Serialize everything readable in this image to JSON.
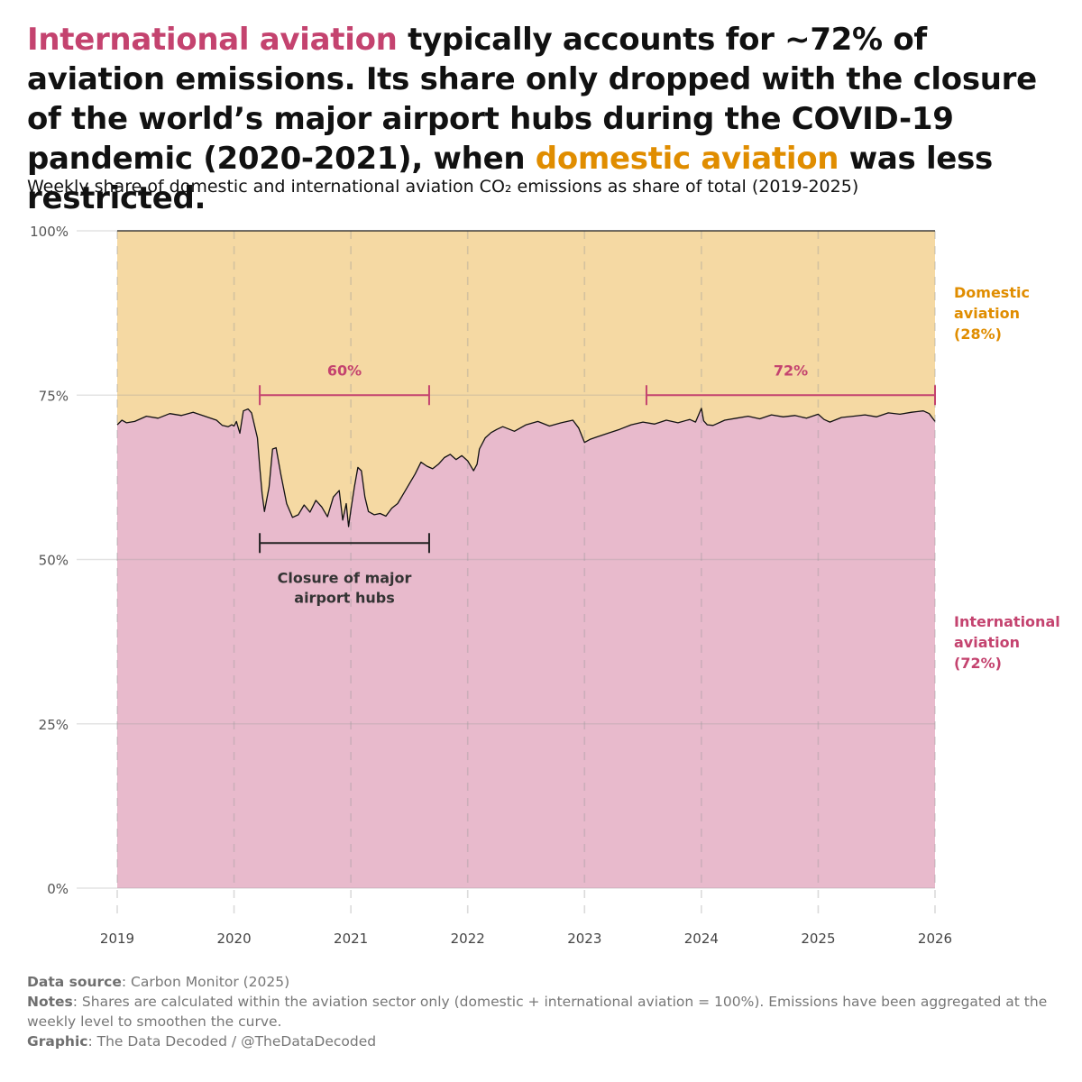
{
  "headline": {
    "part1": "International aviation",
    "part2": " typically accounts for ~72% of aviation emissions. Its share only dropped with the closure of the world’s major airport hubs during the COVID-19 pandemic (2020-2021), when ",
    "part3": "domestic aviation",
    "part4": " was less restricted."
  },
  "subtitle": "Weekly share of domestic and international aviation CO₂ emissions as share of total (2019-2025)",
  "colors": {
    "international": "#c4436f",
    "international_fill": "#e8bacc",
    "domestic": "#e08d00",
    "domestic_fill": "#f5d9a3",
    "closure_bracket": "#222222"
  },
  "chart_data": {
    "type": "area",
    "x_ticks": [
      "2019",
      "2020",
      "2021",
      "2022",
      "2023",
      "2024",
      "2025",
      "2026"
    ],
    "y_ticks": [
      "0%",
      "25%",
      "50%",
      "75%",
      "100%"
    ],
    "xlim": [
      2019,
      2026
    ],
    "ylim": [
      0,
      100
    ],
    "grid": true,
    "series": [
      {
        "name": "International aviation (72%)",
        "label_lines": [
          "International",
          "aviation",
          "(72%)"
        ]
      },
      {
        "name": "Domestic aviation (28%)",
        "label_lines": [
          "Domestic",
          "aviation",
          "(28%)"
        ]
      }
    ],
    "international_share": {
      "x": [
        2019.0,
        2019.04,
        2019.08,
        2019.15,
        2019.25,
        2019.35,
        2019.45,
        2019.55,
        2019.65,
        2019.75,
        2019.85,
        2019.9,
        2019.95,
        2019.98,
        2020.0,
        2020.02,
        2020.05,
        2020.08,
        2020.12,
        2020.15,
        2020.18,
        2020.2,
        2020.22,
        2020.24,
        2020.26,
        2020.3,
        2020.33,
        2020.36,
        2020.4,
        2020.45,
        2020.5,
        2020.55,
        2020.6,
        2020.65,
        2020.7,
        2020.75,
        2020.8,
        2020.85,
        2020.9,
        2020.93,
        2020.96,
        2020.98,
        2021.0,
        2021.03,
        2021.06,
        2021.09,
        2021.12,
        2021.15,
        2021.2,
        2021.25,
        2021.3,
        2021.35,
        2021.4,
        2021.45,
        2021.5,
        2021.55,
        2021.6,
        2021.65,
        2021.7,
        2021.75,
        2021.8,
        2021.85,
        2021.9,
        2021.95,
        2022.0,
        2022.05,
        2022.08,
        2022.1,
        2022.15,
        2022.2,
        2022.25,
        2022.3,
        2022.4,
        2022.5,
        2022.6,
        2022.7,
        2022.8,
        2022.9,
        2022.95,
        2023.0,
        2023.05,
        2023.1,
        2023.2,
        2023.3,
        2023.4,
        2023.5,
        2023.6,
        2023.7,
        2023.8,
        2023.9,
        2023.95,
        2024.0,
        2024.02,
        2024.05,
        2024.1,
        2024.2,
        2024.3,
        2024.4,
        2024.5,
        2024.6,
        2024.7,
        2024.8,
        2024.9,
        2025.0,
        2025.05,
        2025.1,
        2025.2,
        2025.3,
        2025.4,
        2025.5,
        2025.6,
        2025.7,
        2025.8,
        2025.9,
        2025.95,
        2026.0
      ],
      "y": [
        70.5,
        71.2,
        70.8,
        71.0,
        71.8,
        71.5,
        72.2,
        71.9,
        72.4,
        71.8,
        71.2,
        70.4,
        70.2,
        70.5,
        70.3,
        71.0,
        69.2,
        72.6,
        72.9,
        72.3,
        70.0,
        68.5,
        64.0,
        60.0,
        57.3,
        61.0,
        66.8,
        67.0,
        63.0,
        58.5,
        56.4,
        56.8,
        58.3,
        57.2,
        59.0,
        58.0,
        56.5,
        59.5,
        60.5,
        56.0,
        58.5,
        55.0,
        57.5,
        61.0,
        64.0,
        63.5,
        59.5,
        57.3,
        56.8,
        57.0,
        56.6,
        57.8,
        58.5,
        60.0,
        61.5,
        63.0,
        64.8,
        64.2,
        63.8,
        64.5,
        65.5,
        66.0,
        65.2,
        65.8,
        65.0,
        63.5,
        64.5,
        66.8,
        68.5,
        69.3,
        69.8,
        70.2,
        69.5,
        70.5,
        71.0,
        70.3,
        70.8,
        71.2,
        70.0,
        67.8,
        68.3,
        68.6,
        69.2,
        69.8,
        70.5,
        70.9,
        70.6,
        71.2,
        70.8,
        71.3,
        70.9,
        73.0,
        71.1,
        70.5,
        70.4,
        71.2,
        71.5,
        71.8,
        71.4,
        72.0,
        71.7,
        71.9,
        71.5,
        72.1,
        71.3,
        70.9,
        71.6,
        71.8,
        72.0,
        71.7,
        72.3,
        72.1,
        72.4,
        72.6,
        72.2,
        71.0
      ]
    },
    "annotations": [
      {
        "label": "60%",
        "x_start": 2020.22,
        "x_end": 2021.67,
        "y": 75
      },
      {
        "label": "72%",
        "x_start": 2023.53,
        "x_end": 2026.0,
        "y": 75
      },
      {
        "label_lines": [
          "Closure of major",
          "airport hubs"
        ],
        "x_start": 2020.22,
        "x_end": 2021.67,
        "y": 52.5
      }
    ]
  },
  "footer": {
    "source_label": "Data source",
    "source_text": ": Carbon Monitor (2025)",
    "notes_label": "Notes",
    "notes_text": ": Shares are calculated within the aviation sector only (domestic + international aviation = 100%). Emissions have been aggregated at the weekly level to smoothen the curve.",
    "graphic_label": "Graphic",
    "graphic_text": ": The Data Decoded / @TheDataDecoded"
  }
}
